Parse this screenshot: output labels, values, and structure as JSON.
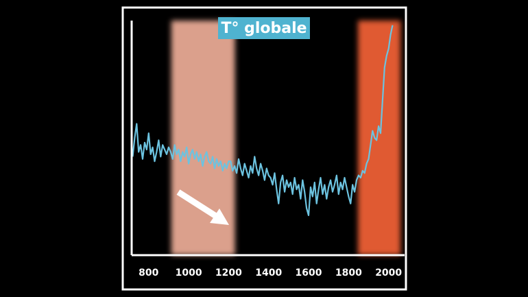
{
  "chart_data": {
    "type": "line",
    "title": "T° globale",
    "x": [
      720,
      730,
      740,
      750,
      760,
      770,
      780,
      790,
      800,
      810,
      820,
      830,
      840,
      850,
      860,
      870,
      880,
      890,
      900,
      910,
      920,
      930,
      940,
      950,
      960,
      970,
      980,
      990,
      1000,
      1010,
      1020,
      1030,
      1040,
      1050,
      1060,
      1070,
      1080,
      1090,
      1100,
      1110,
      1120,
      1130,
      1140,
      1150,
      1160,
      1170,
      1180,
      1190,
      1200,
      1210,
      1220,
      1230,
      1240,
      1250,
      1260,
      1270,
      1280,
      1290,
      1300,
      1310,
      1320,
      1330,
      1340,
      1350,
      1360,
      1370,
      1380,
      1390,
      1400,
      1410,
      1420,
      1430,
      1440,
      1450,
      1460,
      1470,
      1480,
      1490,
      1500,
      1510,
      1520,
      1530,
      1540,
      1550,
      1560,
      1570,
      1580,
      1590,
      1600,
      1610,
      1620,
      1630,
      1640,
      1650,
      1660,
      1670,
      1680,
      1690,
      1700,
      1710,
      1720,
      1730,
      1740,
      1750,
      1760,
      1770,
      1780,
      1790,
      1800,
      1810,
      1820,
      1830,
      1840,
      1850,
      1860,
      1870,
      1880,
      1890,
      1900,
      1910,
      1920,
      1930,
      1940,
      1950,
      1960,
      1970,
      1980,
      1990,
      2000,
      2010,
      2020
    ],
    "values": [
      42,
      50,
      56,
      44,
      47,
      41,
      48,
      45,
      52,
      43,
      46,
      40,
      44,
      49,
      42,
      47,
      45,
      43,
      46,
      44,
      41,
      47,
      43,
      45,
      40,
      44,
      42,
      46,
      39,
      43,
      45,
      41,
      44,
      40,
      43,
      38,
      42,
      44,
      40,
      39,
      42,
      37,
      41,
      38,
      40,
      36,
      39,
      37,
      40,
      40,
      36,
      38,
      35,
      41,
      37,
      34,
      39,
      36,
      33,
      38,
      35,
      42,
      37,
      34,
      39,
      36,
      32,
      37,
      34,
      33,
      30,
      35,
      28,
      22,
      31,
      34,
      27,
      32,
      29,
      31,
      26,
      33,
      28,
      30,
      24,
      32,
      27,
      20,
      17,
      29,
      25,
      31,
      22,
      28,
      33,
      26,
      30,
      24,
      29,
      32,
      27,
      30,
      34,
      26,
      31,
      28,
      33,
      29,
      25,
      22,
      30,
      27,
      32,
      34,
      33,
      36,
      35,
      39,
      41,
      47,
      53,
      50,
      49,
      55,
      52,
      66,
      80,
      85,
      88,
      94,
      98
    ],
    "color": "#6cc3e0",
    "xlim": [
      715,
      2080
    ],
    "xticks": [
      800,
      1000,
      1200,
      1400,
      1600,
      1800,
      2000
    ],
    "ylim": [
      0,
      100
    ],
    "bands": [
      {
        "start": 913,
        "end": 1232,
        "color": "#dba08c"
      },
      {
        "start": 1847,
        "end": 2060,
        "color": "#e05a30"
      }
    ]
  }
}
